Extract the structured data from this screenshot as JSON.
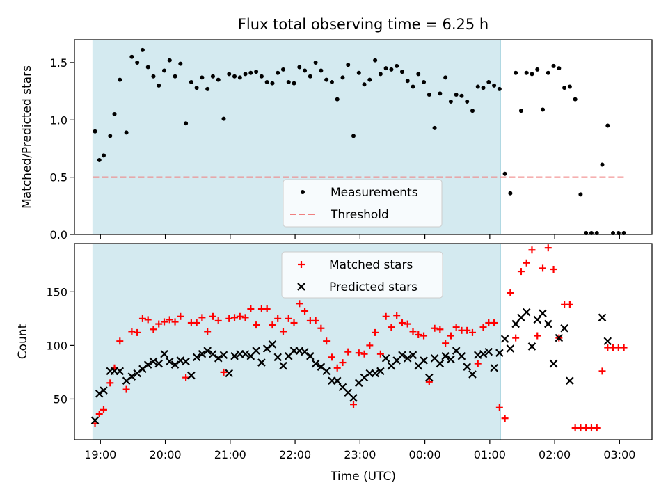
{
  "title": "Flux total observing time = 6.25 h",
  "colors": {
    "shade": "#d4eaf0",
    "measurement": "#000000",
    "threshold": "#f08080",
    "matched": "#ff0000",
    "predicted": "#000000"
  },
  "chart_data": [
    {
      "type": "scatter",
      "panel": "top",
      "ylabel": "Matched/Predicted stars",
      "xlim": [
        18.6,
        3.5
      ],
      "ylim": [
        0,
        1.7
      ],
      "yticks": [
        "0.0",
        "0.5",
        "1.0",
        "1.5"
      ],
      "shaded_range": [
        "18:53",
        "01:10"
      ],
      "legend": [
        "Measurements",
        "Threshold"
      ],
      "threshold": 0.5,
      "series": [
        {
          "name": "Measurements",
          "x": [
            "18:55",
            "18:59",
            "19:03",
            "19:09",
            "19:13",
            "19:18",
            "19:24",
            "19:29",
            "19:34",
            "19:39",
            "19:44",
            "19:49",
            "19:54",
            "19:59",
            "20:04",
            "20:09",
            "20:14",
            "20:19",
            "20:24",
            "20:29",
            "20:34",
            "20:39",
            "20:44",
            "20:49",
            "20:54",
            "20:59",
            "21:04",
            "21:09",
            "21:14",
            "21:19",
            "21:24",
            "21:29",
            "21:34",
            "21:39",
            "21:44",
            "21:49",
            "21:54",
            "21:59",
            "22:04",
            "22:09",
            "22:14",
            "22:19",
            "22:24",
            "22:29",
            "22:34",
            "22:39",
            "22:44",
            "22:49",
            "22:54",
            "22:59",
            "23:04",
            "23:09",
            "23:14",
            "23:19",
            "23:24",
            "23:29",
            "23:34",
            "23:39",
            "23:44",
            "23:49",
            "23:54",
            "23:59",
            "00:04",
            "00:09",
            "00:14",
            "00:19",
            "00:24",
            "00:29",
            "00:34",
            "00:39",
            "00:44",
            "00:49",
            "00:54",
            "00:59",
            "01:04",
            "01:09",
            "01:14",
            "01:19",
            "01:24",
            "01:29",
            "01:34",
            "01:39",
            "01:44",
            "01:49",
            "01:54",
            "01:59",
            "02:04",
            "02:09",
            "02:14",
            "02:19",
            "02:24",
            "02:29",
            "02:34",
            "02:39",
            "02:44",
            "02:49",
            "02:54",
            "02:59",
            "03:04"
          ],
          "y": [
            0.9,
            0.65,
            0.69,
            0.86,
            1.05,
            1.35,
            0.89,
            1.55,
            1.5,
            1.61,
            1.46,
            1.38,
            1.3,
            1.43,
            1.52,
            1.38,
            1.49,
            0.97,
            1.33,
            1.28,
            1.37,
            1.27,
            1.38,
            1.35,
            1.01,
            1.4,
            1.38,
            1.37,
            1.4,
            1.41,
            1.42,
            1.38,
            1.33,
            1.32,
            1.41,
            1.44,
            1.33,
            1.32,
            1.46,
            1.43,
            1.38,
            1.5,
            1.43,
            1.35,
            1.33,
            1.18,
            1.37,
            1.48,
            0.86,
            1.41,
            1.31,
            1.35,
            1.52,
            1.4,
            1.45,
            1.44,
            1.47,
            1.42,
            1.34,
            1.29,
            1.4,
            1.33,
            1.22,
            0.93,
            1.23,
            1.37,
            1.16,
            1.22,
            1.21,
            1.16,
            1.08,
            1.29,
            1.28,
            1.33,
            1.3,
            1.27,
            0.53,
            0.36,
            1.41,
            1.08,
            1.41,
            1.4,
            1.44,
            1.09,
            1.41,
            1.47,
            1.45,
            1.28,
            1.29,
            1.18,
            0.35,
            0.0,
            0.0,
            0.0,
            0.61,
            0.95,
            0.0,
            0.0,
            0.0
          ]
        }
      ]
    },
    {
      "type": "scatter",
      "panel": "bottom",
      "xlabel": "Time (UTC)",
      "ylabel": "Count",
      "xlim": [
        18.6,
        3.5
      ],
      "ylim": [
        12,
        195
      ],
      "yticks": [
        "50",
        "100",
        "150"
      ],
      "xticks": [
        "19:00",
        "20:00",
        "21:00",
        "22:00",
        "23:00",
        "00:00",
        "01:00",
        "02:00",
        "03:00"
      ],
      "shaded_range": [
        "18:53",
        "01:10"
      ],
      "legend": [
        "Matched stars",
        "Predicted stars"
      ],
      "series": [
        {
          "name": "Matched stars",
          "x": [
            "18:55",
            "18:59",
            "19:03",
            "19:09",
            "19:13",
            "19:18",
            "19:24",
            "19:29",
            "19:34",
            "19:39",
            "19:44",
            "19:49",
            "19:54",
            "19:59",
            "20:04",
            "20:09",
            "20:14",
            "20:19",
            "20:24",
            "20:29",
            "20:34",
            "20:39",
            "20:44",
            "20:49",
            "20:54",
            "20:59",
            "21:04",
            "21:09",
            "21:14",
            "21:19",
            "21:24",
            "21:29",
            "21:34",
            "21:39",
            "21:44",
            "21:49",
            "21:54",
            "21:59",
            "22:04",
            "22:09",
            "22:14",
            "22:19",
            "22:24",
            "22:29",
            "22:34",
            "22:39",
            "22:44",
            "22:49",
            "22:54",
            "22:59",
            "23:04",
            "23:09",
            "23:14",
            "23:19",
            "23:24",
            "23:29",
            "23:34",
            "23:39",
            "23:44",
            "23:49",
            "23:54",
            "23:59",
            "00:04",
            "00:09",
            "00:14",
            "00:19",
            "00:24",
            "00:29",
            "00:34",
            "00:39",
            "00:44",
            "00:49",
            "00:54",
            "00:59",
            "01:04",
            "01:09",
            "01:14",
            "01:19",
            "01:24",
            "01:29",
            "01:34",
            "01:39",
            "01:44",
            "01:49",
            "01:54",
            "01:59",
            "02:04",
            "02:09",
            "02:14",
            "02:19",
            "02:24",
            "02:29",
            "02:34",
            "02:39",
            "02:44",
            "02:49",
            "02:54",
            "02:59",
            "03:04"
          ],
          "y": [
            27,
            36,
            40,
            65,
            79,
            104,
            59,
            113,
            112,
            125,
            124,
            115,
            120,
            122,
            124,
            122,
            127,
            70,
            121,
            121,
            126,
            113,
            127,
            123,
            75,
            125,
            126,
            127,
            126,
            134,
            119,
            134,
            134,
            119,
            125,
            113,
            125,
            121,
            139,
            132,
            123,
            123,
            116,
            104,
            89,
            79,
            84,
            94,
            45,
            93,
            92,
            100,
            112,
            92,
            127,
            117,
            128,
            121,
            120,
            113,
            110,
            109,
            66,
            116,
            115,
            102,
            109,
            117,
            114,
            114,
            112,
            83,
            117,
            121,
            121,
            42,
            32,
            149,
            107,
            169,
            177,
            189,
            109,
            172,
            191,
            171,
            107,
            138,
            138,
            23,
            23,
            23,
            23,
            23,
            76,
            98,
            98,
            98,
            98
          ]
        },
        {
          "name": "Predicted stars",
          "x": [
            "18:55",
            "18:59",
            "19:03",
            "19:09",
            "19:13",
            "19:18",
            "19:24",
            "19:29",
            "19:34",
            "19:39",
            "19:44",
            "19:49",
            "19:54",
            "19:59",
            "20:04",
            "20:09",
            "20:14",
            "20:19",
            "20:24",
            "20:29",
            "20:34",
            "20:39",
            "20:44",
            "20:49",
            "20:54",
            "20:59",
            "21:04",
            "21:09",
            "21:14",
            "21:19",
            "21:24",
            "21:29",
            "21:34",
            "21:39",
            "21:44",
            "21:49",
            "21:54",
            "21:59",
            "22:04",
            "22:09",
            "22:14",
            "22:19",
            "22:24",
            "22:29",
            "22:34",
            "22:39",
            "22:44",
            "22:49",
            "22:54",
            "22:59",
            "23:04",
            "23:09",
            "23:14",
            "23:19",
            "23:24",
            "23:29",
            "23:34",
            "23:39",
            "23:44",
            "23:49",
            "23:54",
            "23:59",
            "00:04",
            "00:09",
            "00:14",
            "00:19",
            "00:24",
            "00:29",
            "00:34",
            "00:39",
            "00:44",
            "00:49",
            "00:54",
            "00:59",
            "01:04",
            "01:09",
            "01:14",
            "01:19",
            "01:24",
            "01:29",
            "01:34",
            "01:39",
            "01:44",
            "01:49",
            "01:54",
            "01:59",
            "02:04",
            "02:09",
            "02:14",
            "02:44",
            "02:49"
          ],
          "y": [
            30,
            55,
            58,
            76,
            76,
            76,
            67,
            71,
            74,
            78,
            82,
            85,
            83,
            92,
            85,
            82,
            86,
            85,
            72,
            89,
            92,
            95,
            92,
            88,
            91,
            74,
            90,
            92,
            92,
            90,
            95,
            84,
            97,
            101,
            89,
            81,
            90,
            95,
            95,
            94,
            90,
            83,
            80,
            76,
            67,
            67,
            61,
            56,
            51,
            65,
            70,
            74,
            74,
            76,
            88,
            81,
            86,
            91,
            88,
            91,
            81,
            86,
            70,
            88,
            83,
            90,
            87,
            95,
            90,
            80,
            73,
            91,
            92,
            94,
            79,
            93,
            106,
            97,
            120,
            126,
            131,
            99,
            124,
            130,
            120,
            83,
            107,
            116,
            67,
            126,
            104
          ]
        }
      ]
    }
  ]
}
